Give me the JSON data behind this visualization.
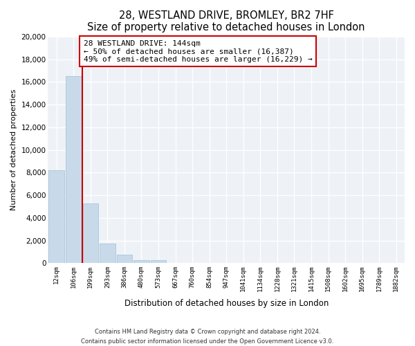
{
  "title": "28, WESTLAND DRIVE, BROMLEY, BR2 7HF",
  "subtitle": "Size of property relative to detached houses in London",
  "xlabel": "Distribution of detached houses by size in London",
  "ylabel": "Number of detached properties",
  "bar_color": "#c8daea",
  "bar_edge_color": "#a8c4d8",
  "annotation_line_color": "#cc0000",
  "annotation_box_edge": "#cc0000",
  "bar_categories": [
    "12sqm",
    "106sqm",
    "199sqm",
    "293sqm",
    "386sqm",
    "480sqm",
    "573sqm",
    "667sqm",
    "760sqm",
    "854sqm",
    "947sqm",
    "1041sqm",
    "1134sqm",
    "1228sqm",
    "1321sqm",
    "1415sqm",
    "1508sqm",
    "1602sqm",
    "1695sqm",
    "1789sqm",
    "1882sqm"
  ],
  "bar_heights": [
    8200,
    16500,
    5300,
    1750,
    750,
    300,
    250,
    0,
    0,
    0,
    0,
    0,
    0,
    0,
    0,
    0,
    0,
    0,
    0,
    0,
    0
  ],
  "ylim": [
    0,
    20000
  ],
  "yticks": [
    0,
    2000,
    4000,
    6000,
    8000,
    10000,
    12000,
    14000,
    16000,
    18000,
    20000
  ],
  "annotation_title": "28 WESTLAND DRIVE: 144sqm",
  "annotation_line1": "← 50% of detached houses are smaller (16,387)",
  "annotation_line2": "49% of semi-detached houses are larger (16,229) →",
  "vertical_line_x": 1.5,
  "footnote1": "Contains HM Land Registry data © Crown copyright and database right 2024.",
  "footnote2": "Contains public sector information licensed under the Open Government Licence v3.0.",
  "background_color": "#eef2f7"
}
